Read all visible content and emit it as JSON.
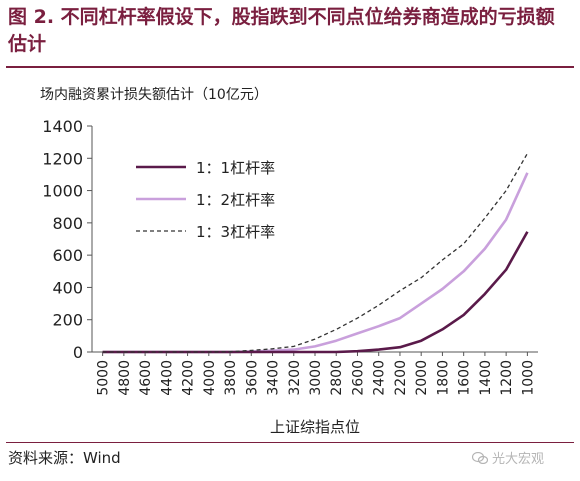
{
  "title": "图 2.  不同杠杆率假设下，股指跌到不同点位给券商造成的亏损额估计",
  "source": "资料来源：Wind",
  "watermark": "光大宏观",
  "chart_data": {
    "type": "line",
    "ylabel": "场内融资累计损失额估计（10亿元）",
    "xlabel": "上证综指点位",
    "x": [
      5000,
      4800,
      4600,
      4400,
      4200,
      4000,
      3800,
      3600,
      3400,
      3200,
      3000,
      2800,
      2600,
      2400,
      2200,
      2000,
      1800,
      1600,
      1400,
      1200,
      1000
    ],
    "ylim": [
      0,
      1400
    ],
    "yticks": [
      0,
      200,
      400,
      600,
      800,
      1000,
      1200,
      1400
    ],
    "grid": false,
    "legend_position": "top-left",
    "series": [
      {
        "name": "1：1杠杆率",
        "color": "#5a1a4a",
        "style": "solid-thick",
        "values": [
          0,
          0,
          0,
          0,
          0,
          0,
          0,
          0,
          0,
          0,
          0,
          0,
          5,
          15,
          30,
          70,
          140,
          230,
          360,
          510,
          745
        ]
      },
      {
        "name": "1：2杠杆率",
        "color": "#c9a0dc",
        "style": "solid-thick",
        "values": [
          0,
          0,
          0,
          0,
          0,
          0,
          0,
          3,
          8,
          15,
          35,
          70,
          115,
          160,
          210,
          300,
          390,
          500,
          640,
          820,
          1110
        ]
      },
      {
        "name": "1：3杠杆率",
        "color": "#333333",
        "style": "dashed",
        "values": [
          0,
          0,
          0,
          0,
          0,
          0,
          2,
          10,
          20,
          35,
          80,
          140,
          210,
          290,
          380,
          460,
          570,
          670,
          830,
          1000,
          1230
        ]
      }
    ]
  }
}
